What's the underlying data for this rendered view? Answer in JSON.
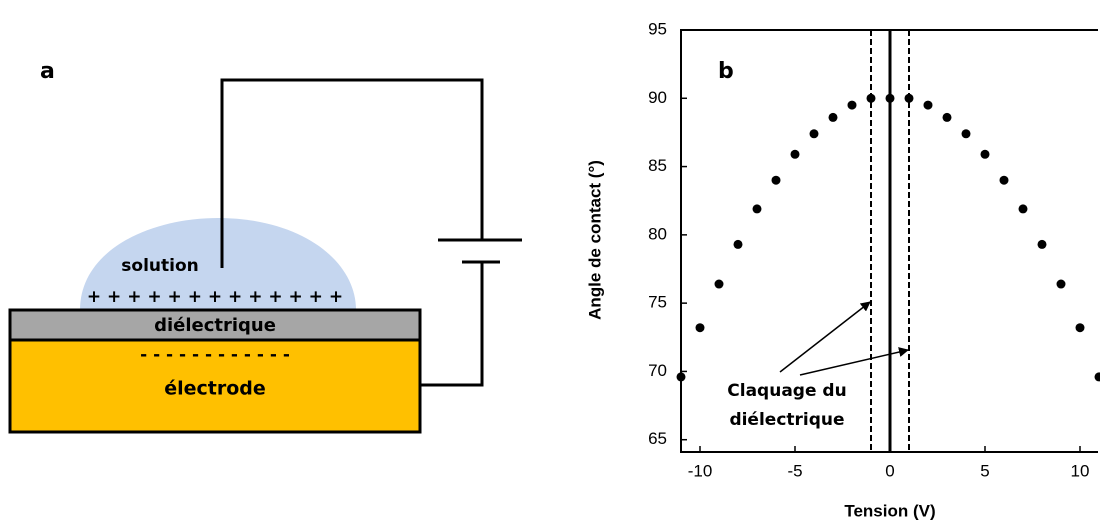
{
  "diagram": {
    "label": "a",
    "solution": "solution",
    "positive_charges": "+ + + + + + + + + + + + +",
    "dielectric": "diélectrique",
    "negative_charges": "- - - - - - - - - - - -",
    "electrode": "électrode"
  },
  "chart_data": {
    "type": "scatter",
    "panel_label": "b",
    "x_label": "Tension (V)",
    "y_label": "Angle de contact (°)",
    "x": [
      -11,
      -10,
      -9,
      -8,
      -7,
      -6,
      -5,
      -4,
      -3,
      -2,
      -1,
      0,
      1,
      2,
      3,
      4,
      5,
      6,
      7,
      8,
      9,
      10,
      11
    ],
    "values": [
      69.6,
      73.2,
      76.4,
      79.3,
      81.9,
      84.0,
      85.9,
      87.4,
      88.6,
      89.5,
      90.0,
      90.0,
      90.0,
      89.5,
      88.6,
      87.4,
      85.9,
      84.0,
      81.9,
      79.3,
      76.4,
      73.2,
      69.6
    ],
    "color": "#000000",
    "xlim": [
      -11,
      11
    ],
    "ylim": [
      64.1,
      95
    ],
    "xticks": [
      -10,
      -5,
      0,
      5,
      10
    ],
    "yticks": [
      65,
      70,
      75,
      80,
      85,
      90,
      95
    ],
    "vlines": [
      -1,
      0,
      1
    ],
    "vline_styles": [
      "dashed",
      "solid",
      "dashed"
    ],
    "annotation": [
      "Claquage du",
      "diélectrique"
    ]
  }
}
